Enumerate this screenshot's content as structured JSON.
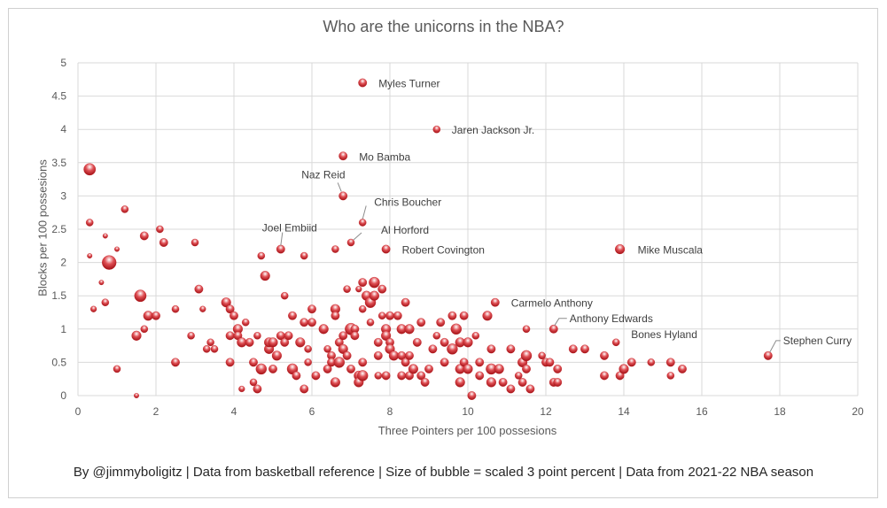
{
  "footer": "By @jimmyboligitz | Data from basketball reference | Size of bubble = scaled 3 point percent | Data from 2021-22 NBA season",
  "chart_data": {
    "type": "scatter",
    "title": "Who are the unicorns in the NBA?",
    "xlabel": "Three Pointers per 100 possesions",
    "ylabel": "Blocks per 100 possesions",
    "xlim": [
      0,
      20
    ],
    "ylim": [
      0,
      5
    ],
    "xticks": [
      0,
      2,
      4,
      6,
      8,
      10,
      12,
      14,
      16,
      18,
      20
    ],
    "yticks": [
      0,
      0.5,
      1,
      1.5,
      2,
      2.5,
      3,
      3.5,
      4,
      4.5,
      5
    ],
    "ytick_labels": [
      "0",
      "0.5",
      "1",
      "1.5",
      "2",
      "2.5",
      "3",
      "3.5",
      "4",
      "4.5",
      "5"
    ],
    "grid": true,
    "bubble_color": "#c0151b",
    "annotations": [
      {
        "label": "Myles Turner",
        "x": 7.3,
        "y": 4.7
      },
      {
        "label": "Jaren Jackson Jr.",
        "x": 9.2,
        "y": 4.0
      },
      {
        "label": "Mo Bamba",
        "x": 6.8,
        "y": 3.6
      },
      {
        "label": "Naz Reid",
        "x": 6.8,
        "y": 3.0
      },
      {
        "label": "Chris Boucher",
        "x": 7.3,
        "y": 2.6
      },
      {
        "label": "Joel Embiid",
        "x": 5.2,
        "y": 2.2
      },
      {
        "label": "Al Horford",
        "x": 7.0,
        "y": 2.3
      },
      {
        "label": "Robert Covington",
        "x": 7.9,
        "y": 2.2
      },
      {
        "label": "Mike Muscala",
        "x": 13.9,
        "y": 2.2
      },
      {
        "label": "Carmelo Anthony",
        "x": 10.7,
        "y": 1.4
      },
      {
        "label": "Anthony Edwards",
        "x": 12.2,
        "y": 1.0
      },
      {
        "label": "Bones Hyland",
        "x": 13.8,
        "y": 0.8
      },
      {
        "label": "Stephen Curry",
        "x": 17.7,
        "y": 0.6
      }
    ],
    "points": [
      {
        "x": 0.3,
        "y": 3.4,
        "s": 0.8
      },
      {
        "x": 0.3,
        "y": 2.6,
        "s": 0.4
      },
      {
        "x": 0.3,
        "y": 2.1,
        "s": 0.2
      },
      {
        "x": 0.8,
        "y": 2.0,
        "s": 1.0
      },
      {
        "x": 0.6,
        "y": 1.7,
        "s": 0.2
      },
      {
        "x": 0.7,
        "y": 1.4,
        "s": 0.4
      },
      {
        "x": 0.4,
        "y": 1.3,
        "s": 0.3
      },
      {
        "x": 0.7,
        "y": 2.4,
        "s": 0.2
      },
      {
        "x": 1.0,
        "y": 2.2,
        "s": 0.2
      },
      {
        "x": 1.2,
        "y": 2.8,
        "s": 0.4
      },
      {
        "x": 1.0,
        "y": 0.4,
        "s": 0.4
      },
      {
        "x": 1.5,
        "y": 0.0,
        "s": 0.2
      },
      {
        "x": 1.5,
        "y": 0.9,
        "s": 0.6
      },
      {
        "x": 1.6,
        "y": 1.5,
        "s": 0.8
      },
      {
        "x": 1.7,
        "y": 1.0,
        "s": 0.4
      },
      {
        "x": 1.8,
        "y": 1.2,
        "s": 0.6
      },
      {
        "x": 1.7,
        "y": 2.4,
        "s": 0.5
      },
      {
        "x": 2.0,
        "y": 1.2,
        "s": 0.5
      },
      {
        "x": 2.1,
        "y": 2.5,
        "s": 0.4
      },
      {
        "x": 2.2,
        "y": 2.3,
        "s": 0.5
      },
      {
        "x": 2.5,
        "y": 1.3,
        "s": 0.4
      },
      {
        "x": 2.5,
        "y": 0.5,
        "s": 0.5
      },
      {
        "x": 2.9,
        "y": 0.9,
        "s": 0.4
      },
      {
        "x": 3.0,
        "y": 2.3,
        "s": 0.4
      },
      {
        "x": 3.1,
        "y": 1.6,
        "s": 0.5
      },
      {
        "x": 3.2,
        "y": 1.3,
        "s": 0.3
      },
      {
        "x": 3.3,
        "y": 0.7,
        "s": 0.4
      },
      {
        "x": 3.4,
        "y": 0.8,
        "s": 0.4
      },
      {
        "x": 3.5,
        "y": 0.7,
        "s": 0.4
      },
      {
        "x": 3.8,
        "y": 1.4,
        "s": 0.6
      },
      {
        "x": 3.9,
        "y": 0.9,
        "s": 0.5
      },
      {
        "x": 3.9,
        "y": 1.3,
        "s": 0.5
      },
      {
        "x": 4.0,
        "y": 1.2,
        "s": 0.5
      },
      {
        "x": 3.9,
        "y": 0.5,
        "s": 0.5
      },
      {
        "x": 4.1,
        "y": 1.0,
        "s": 0.6
      },
      {
        "x": 4.1,
        "y": 0.9,
        "s": 0.5
      },
      {
        "x": 4.2,
        "y": 0.8,
        "s": 0.6
      },
      {
        "x": 4.2,
        "y": 0.1,
        "s": 0.3
      },
      {
        "x": 4.3,
        "y": 1.1,
        "s": 0.4
      },
      {
        "x": 4.4,
        "y": 0.8,
        "s": 0.5
      },
      {
        "x": 4.5,
        "y": 0.5,
        "s": 0.5
      },
      {
        "x": 4.5,
        "y": 0.2,
        "s": 0.4
      },
      {
        "x": 4.6,
        "y": 0.1,
        "s": 0.5
      },
      {
        "x": 4.6,
        "y": 0.9,
        "s": 0.4
      },
      {
        "x": 4.7,
        "y": 2.1,
        "s": 0.4
      },
      {
        "x": 4.7,
        "y": 0.4,
        "s": 0.7
      },
      {
        "x": 4.8,
        "y": 1.8,
        "s": 0.6
      },
      {
        "x": 4.9,
        "y": 0.7,
        "s": 0.6
      },
      {
        "x": 4.9,
        "y": 0.8,
        "s": 0.6
      },
      {
        "x": 5.0,
        "y": 0.8,
        "s": 0.6
      },
      {
        "x": 5.0,
        "y": 0.4,
        "s": 0.5
      },
      {
        "x": 5.1,
        "y": 0.6,
        "s": 0.6
      },
      {
        "x": 5.2,
        "y": 2.2,
        "s": 0.5
      },
      {
        "x": 5.2,
        "y": 0.9,
        "s": 0.5
      },
      {
        "x": 5.3,
        "y": 1.5,
        "s": 0.4
      },
      {
        "x": 5.3,
        "y": 0.8,
        "s": 0.5
      },
      {
        "x": 5.4,
        "y": 0.9,
        "s": 0.5
      },
      {
        "x": 5.5,
        "y": 1.2,
        "s": 0.5
      },
      {
        "x": 5.5,
        "y": 0.4,
        "s": 0.7
      },
      {
        "x": 5.6,
        "y": 0.3,
        "s": 0.5
      },
      {
        "x": 5.7,
        "y": 0.8,
        "s": 0.6
      },
      {
        "x": 5.8,
        "y": 2.1,
        "s": 0.4
      },
      {
        "x": 5.8,
        "y": 1.1,
        "s": 0.5
      },
      {
        "x": 5.8,
        "y": 0.1,
        "s": 0.5
      },
      {
        "x": 5.9,
        "y": 0.7,
        "s": 0.4
      },
      {
        "x": 5.9,
        "y": 0.5,
        "s": 0.4
      },
      {
        "x": 6.0,
        "y": 1.3,
        "s": 0.5
      },
      {
        "x": 6.0,
        "y": 1.1,
        "s": 0.5
      },
      {
        "x": 6.1,
        "y": 0.3,
        "s": 0.5
      },
      {
        "x": 6.3,
        "y": 1.0,
        "s": 0.6
      },
      {
        "x": 6.4,
        "y": 0.7,
        "s": 0.4
      },
      {
        "x": 6.4,
        "y": 0.4,
        "s": 0.5
      },
      {
        "x": 6.5,
        "y": 0.6,
        "s": 0.5
      },
      {
        "x": 6.5,
        "y": 0.5,
        "s": 0.5
      },
      {
        "x": 6.6,
        "y": 2.2,
        "s": 0.4
      },
      {
        "x": 6.6,
        "y": 1.3,
        "s": 0.6
      },
      {
        "x": 6.6,
        "y": 1.2,
        "s": 0.5
      },
      {
        "x": 6.6,
        "y": 0.2,
        "s": 0.6
      },
      {
        "x": 6.7,
        "y": 0.5,
        "s": 0.7
      },
      {
        "x": 6.7,
        "y": 0.8,
        "s": 0.5
      },
      {
        "x": 6.8,
        "y": 3.6,
        "s": 0.5
      },
      {
        "x": 6.8,
        "y": 3.0,
        "s": 0.5
      },
      {
        "x": 6.8,
        "y": 0.9,
        "s": 0.5
      },
      {
        "x": 6.8,
        "y": 0.7,
        "s": 0.6
      },
      {
        "x": 6.9,
        "y": 1.6,
        "s": 0.4
      },
      {
        "x": 6.9,
        "y": 0.6,
        "s": 0.5
      },
      {
        "x": 7.0,
        "y": 2.3,
        "s": 0.4
      },
      {
        "x": 7.0,
        "y": 1.0,
        "s": 0.8
      },
      {
        "x": 7.0,
        "y": 0.4,
        "s": 0.5
      },
      {
        "x": 7.1,
        "y": 1.0,
        "s": 0.5
      },
      {
        "x": 7.1,
        "y": 0.9,
        "s": 0.5
      },
      {
        "x": 7.2,
        "y": 1.6,
        "s": 0.3
      },
      {
        "x": 7.2,
        "y": 0.3,
        "s": 0.6
      },
      {
        "x": 7.2,
        "y": 0.2,
        "s": 0.6
      },
      {
        "x": 7.3,
        "y": 4.7,
        "s": 0.5
      },
      {
        "x": 7.3,
        "y": 2.6,
        "s": 0.4
      },
      {
        "x": 7.3,
        "y": 1.7,
        "s": 0.5
      },
      {
        "x": 7.3,
        "y": 1.3,
        "s": 0.4
      },
      {
        "x": 7.3,
        "y": 0.5,
        "s": 0.5
      },
      {
        "x": 7.3,
        "y": 0.3,
        "s": 0.7
      },
      {
        "x": 7.4,
        "y": 1.5,
        "s": 0.6
      },
      {
        "x": 7.5,
        "y": 1.4,
        "s": 0.7
      },
      {
        "x": 7.5,
        "y": 1.1,
        "s": 0.4
      },
      {
        "x": 7.6,
        "y": 1.7,
        "s": 0.7
      },
      {
        "x": 7.6,
        "y": 1.5,
        "s": 0.6
      },
      {
        "x": 7.7,
        "y": 0.8,
        "s": 0.5
      },
      {
        "x": 7.7,
        "y": 0.6,
        "s": 0.5
      },
      {
        "x": 7.7,
        "y": 0.3,
        "s": 0.4
      },
      {
        "x": 7.8,
        "y": 1.2,
        "s": 0.4
      },
      {
        "x": 7.8,
        "y": 1.6,
        "s": 0.5
      },
      {
        "x": 7.9,
        "y": 2.2,
        "s": 0.5
      },
      {
        "x": 7.9,
        "y": 1.0,
        "s": 0.6
      },
      {
        "x": 7.9,
        "y": 0.9,
        "s": 0.6
      },
      {
        "x": 7.9,
        "y": 0.3,
        "s": 0.5
      },
      {
        "x": 8.0,
        "y": 1.2,
        "s": 0.5
      },
      {
        "x": 8.0,
        "y": 0.8,
        "s": 0.5
      },
      {
        "x": 8.0,
        "y": 0.7,
        "s": 0.6
      },
      {
        "x": 8.1,
        "y": 0.6,
        "s": 0.6
      },
      {
        "x": 8.2,
        "y": 1.2,
        "s": 0.5
      },
      {
        "x": 8.3,
        "y": 1.0,
        "s": 0.6
      },
      {
        "x": 8.3,
        "y": 0.6,
        "s": 0.5
      },
      {
        "x": 8.3,
        "y": 0.3,
        "s": 0.5
      },
      {
        "x": 8.4,
        "y": 1.4,
        "s": 0.5
      },
      {
        "x": 8.4,
        "y": 0.5,
        "s": 0.5
      },
      {
        "x": 8.5,
        "y": 1.0,
        "s": 0.6
      },
      {
        "x": 8.5,
        "y": 0.6,
        "s": 0.5
      },
      {
        "x": 8.5,
        "y": 0.3,
        "s": 0.5
      },
      {
        "x": 8.6,
        "y": 0.4,
        "s": 0.6
      },
      {
        "x": 8.7,
        "y": 0.8,
        "s": 0.5
      },
      {
        "x": 8.8,
        "y": 1.1,
        "s": 0.5
      },
      {
        "x": 8.8,
        "y": 0.3,
        "s": 0.5
      },
      {
        "x": 8.9,
        "y": 0.2,
        "s": 0.5
      },
      {
        "x": 9.0,
        "y": 0.4,
        "s": 0.5
      },
      {
        "x": 9.1,
        "y": 0.7,
        "s": 0.5
      },
      {
        "x": 9.2,
        "y": 4.0,
        "s": 0.4
      },
      {
        "x": 9.2,
        "y": 0.9,
        "s": 0.4
      },
      {
        "x": 9.3,
        "y": 1.1,
        "s": 0.5
      },
      {
        "x": 9.4,
        "y": 0.8,
        "s": 0.5
      },
      {
        "x": 9.4,
        "y": 0.5,
        "s": 0.5
      },
      {
        "x": 9.6,
        "y": 1.2,
        "s": 0.5
      },
      {
        "x": 9.6,
        "y": 0.7,
        "s": 0.7
      },
      {
        "x": 9.7,
        "y": 1.0,
        "s": 0.7
      },
      {
        "x": 9.8,
        "y": 0.8,
        "s": 0.6
      },
      {
        "x": 9.8,
        "y": 0.4,
        "s": 0.6
      },
      {
        "x": 9.8,
        "y": 0.2,
        "s": 0.6
      },
      {
        "x": 9.9,
        "y": 1.2,
        "s": 0.5
      },
      {
        "x": 9.9,
        "y": 0.5,
        "s": 0.5
      },
      {
        "x": 10.0,
        "y": 0.8,
        "s": 0.6
      },
      {
        "x": 10.0,
        "y": 0.4,
        "s": 0.6
      },
      {
        "x": 10.1,
        "y": 0.0,
        "s": 0.5
      },
      {
        "x": 10.2,
        "y": 0.9,
        "s": 0.4
      },
      {
        "x": 10.3,
        "y": 0.5,
        "s": 0.5
      },
      {
        "x": 10.3,
        "y": 0.3,
        "s": 0.5
      },
      {
        "x": 10.5,
        "y": 1.2,
        "s": 0.6
      },
      {
        "x": 10.6,
        "y": 0.7,
        "s": 0.5
      },
      {
        "x": 10.6,
        "y": 0.4,
        "s": 0.7
      },
      {
        "x": 10.6,
        "y": 0.2,
        "s": 0.6
      },
      {
        "x": 10.7,
        "y": 1.4,
        "s": 0.5
      },
      {
        "x": 10.8,
        "y": 0.4,
        "s": 0.6
      },
      {
        "x": 10.9,
        "y": 0.2,
        "s": 0.5
      },
      {
        "x": 11.1,
        "y": 0.7,
        "s": 0.5
      },
      {
        "x": 11.1,
        "y": 0.1,
        "s": 0.5
      },
      {
        "x": 11.3,
        "y": 0.3,
        "s": 0.4
      },
      {
        "x": 11.4,
        "y": 0.2,
        "s": 0.5
      },
      {
        "x": 11.4,
        "y": 0.5,
        "s": 0.6
      },
      {
        "x": 11.5,
        "y": 1.0,
        "s": 0.4
      },
      {
        "x": 11.5,
        "y": 0.6,
        "s": 0.7
      },
      {
        "x": 11.5,
        "y": 0.4,
        "s": 0.5
      },
      {
        "x": 11.6,
        "y": 0.1,
        "s": 0.5
      },
      {
        "x": 11.9,
        "y": 0.6,
        "s": 0.4
      },
      {
        "x": 12.0,
        "y": 0.5,
        "s": 0.5
      },
      {
        "x": 12.1,
        "y": 0.5,
        "s": 0.5
      },
      {
        "x": 12.2,
        "y": 1.0,
        "s": 0.5
      },
      {
        "x": 12.2,
        "y": 0.2,
        "s": 0.5
      },
      {
        "x": 12.3,
        "y": 0.4,
        "s": 0.5
      },
      {
        "x": 12.3,
        "y": 0.2,
        "s": 0.5
      },
      {
        "x": 12.7,
        "y": 0.7,
        "s": 0.5
      },
      {
        "x": 13.0,
        "y": 0.7,
        "s": 0.5
      },
      {
        "x": 13.5,
        "y": 0.6,
        "s": 0.5
      },
      {
        "x": 13.5,
        "y": 0.3,
        "s": 0.5
      },
      {
        "x": 13.8,
        "y": 0.8,
        "s": 0.4
      },
      {
        "x": 13.9,
        "y": 2.2,
        "s": 0.6
      },
      {
        "x": 13.9,
        "y": 0.3,
        "s": 0.5
      },
      {
        "x": 14.0,
        "y": 0.4,
        "s": 0.6
      },
      {
        "x": 14.2,
        "y": 0.5,
        "s": 0.5
      },
      {
        "x": 14.7,
        "y": 0.5,
        "s": 0.4
      },
      {
        "x": 15.2,
        "y": 0.5,
        "s": 0.5
      },
      {
        "x": 15.2,
        "y": 0.3,
        "s": 0.4
      },
      {
        "x": 15.5,
        "y": 0.4,
        "s": 0.5
      },
      {
        "x": 17.7,
        "y": 0.6,
        "s": 0.5
      }
    ]
  }
}
